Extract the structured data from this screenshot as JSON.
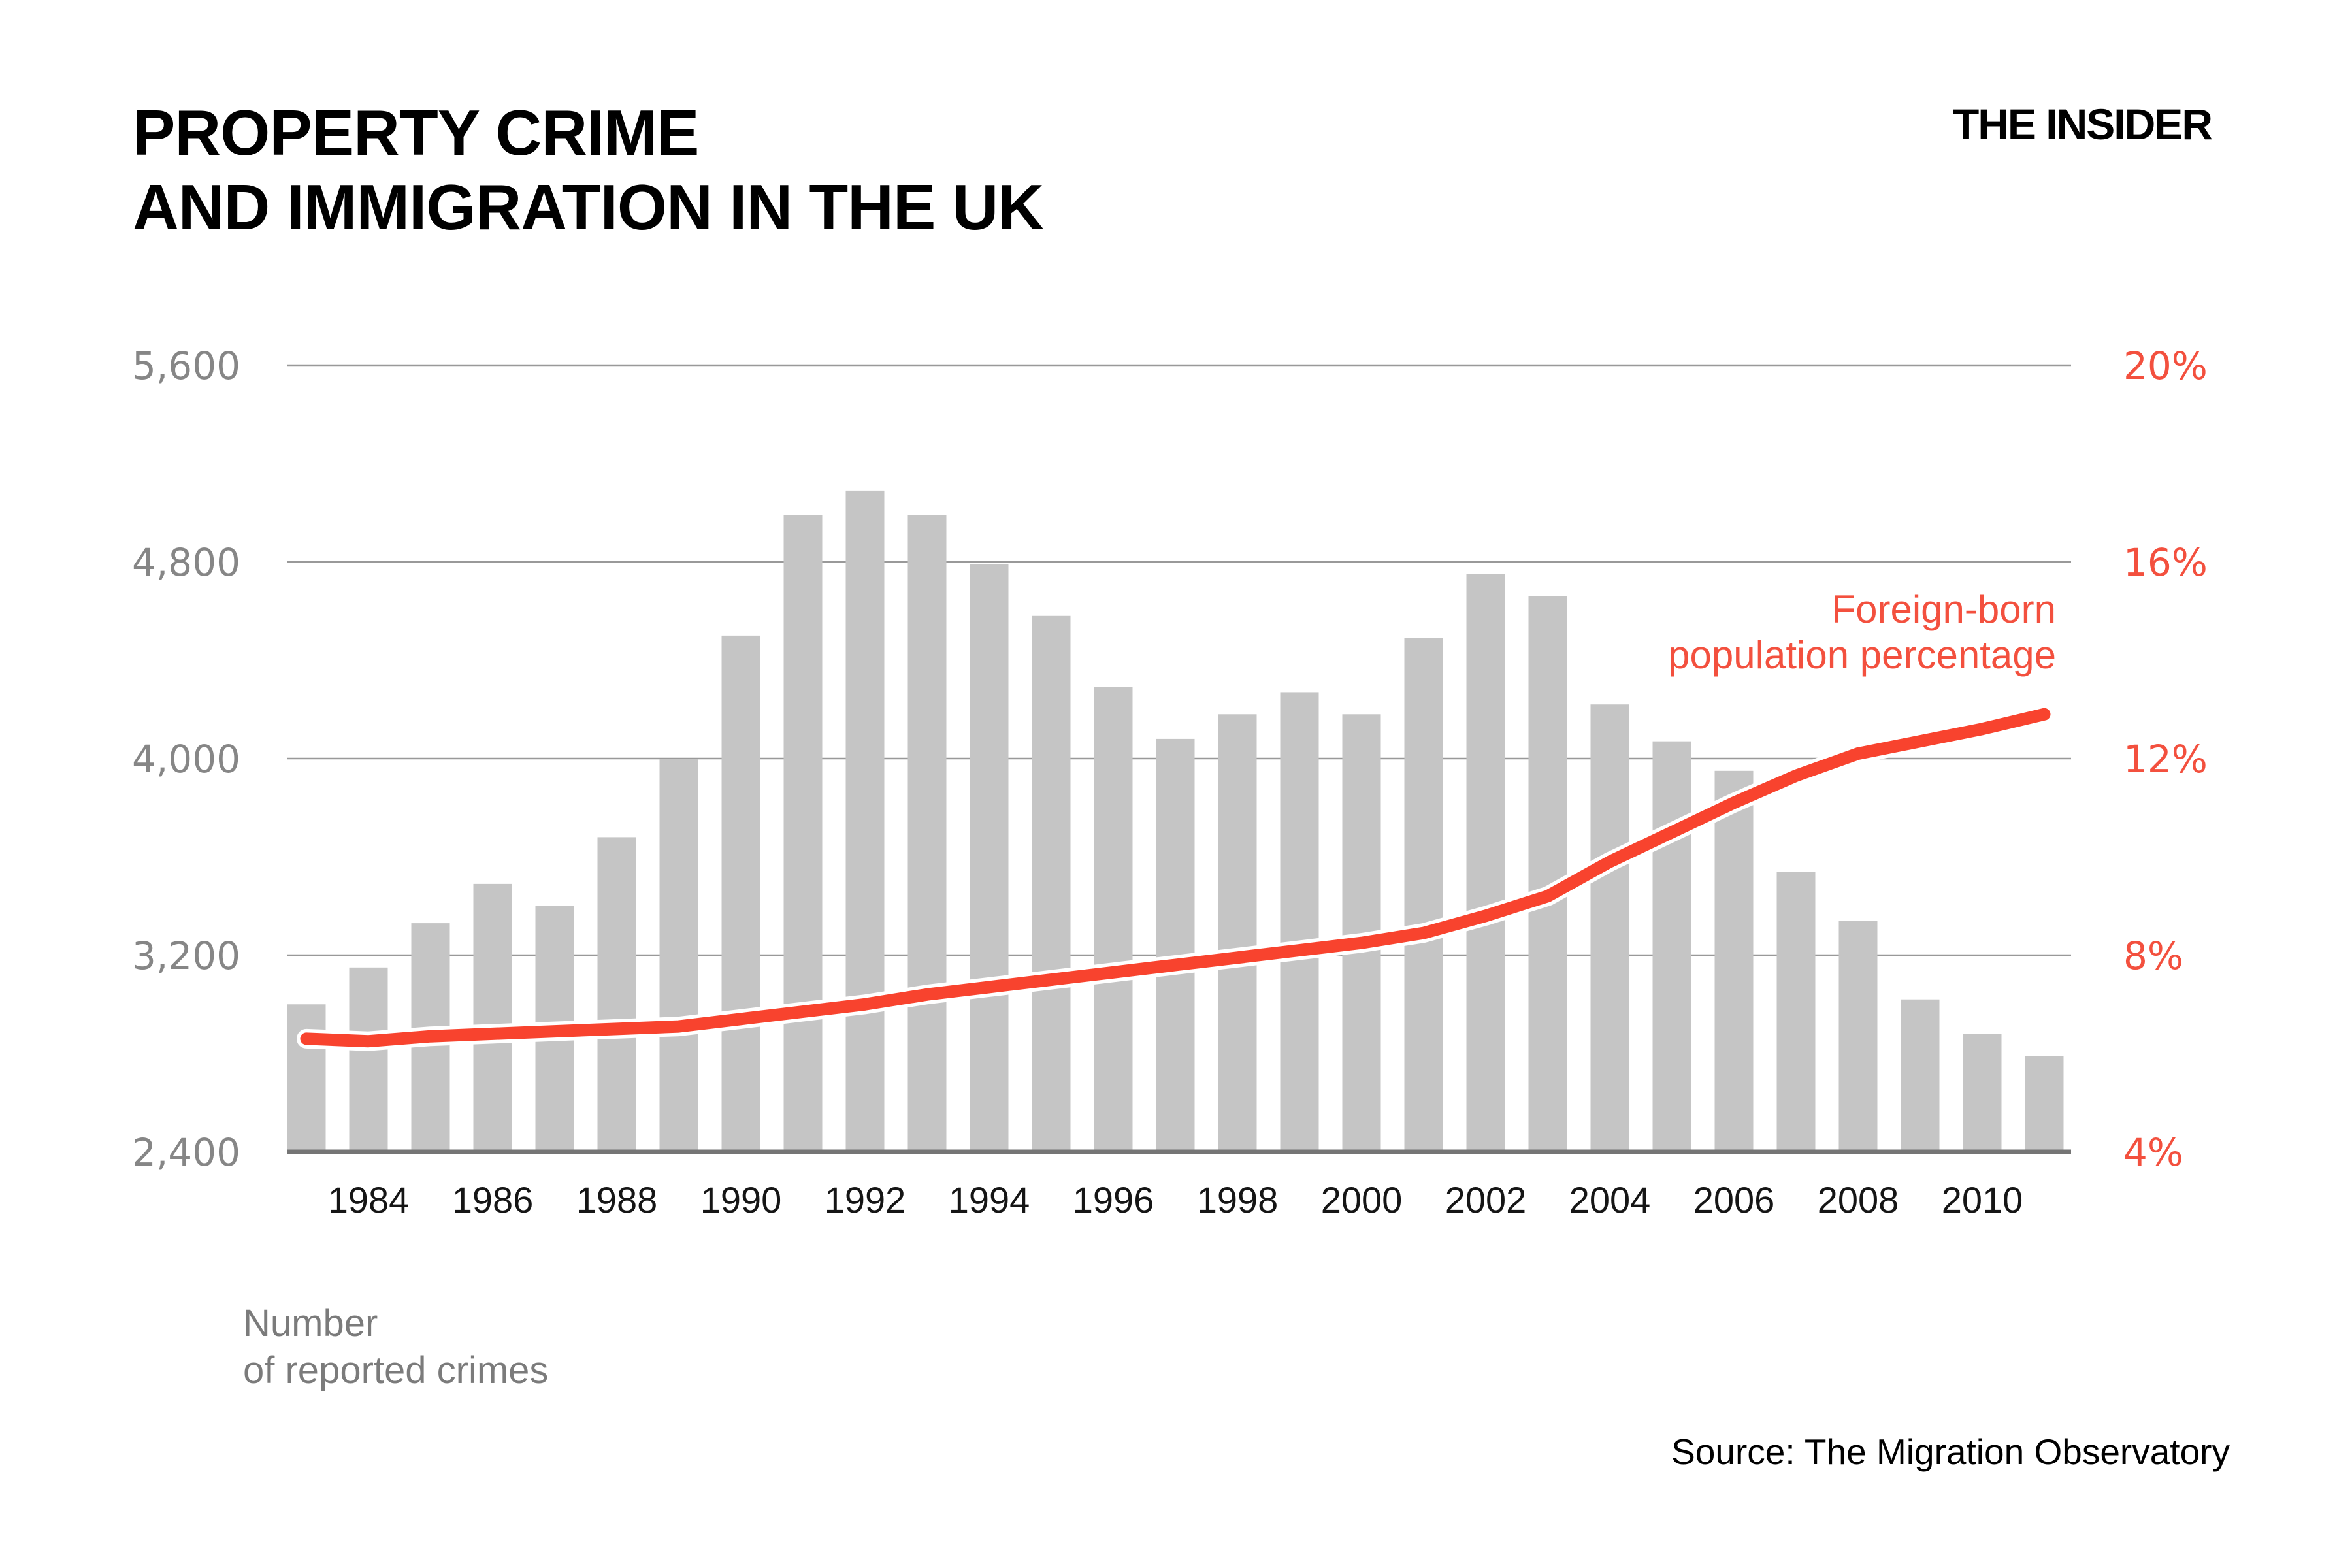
{
  "header": {
    "title_line1": "PROPERTY CRIME",
    "title_line2": "AND IMMIGRATION IN THE UK",
    "brand": "THE INSIDER"
  },
  "legend": {
    "line1": "Foreign-born",
    "line2": "population percentage"
  },
  "left_axis_caption": {
    "line1": "Number",
    "line2": "of reported crimes"
  },
  "source": "Source: The Migration Observatory",
  "colors": {
    "bar": "#C5C5C5",
    "line_red": "#F8432E",
    "label_red": "#F3503E",
    "grid": "#999999",
    "baseline": "#757575",
    "tick_gray": "#868686",
    "caption_gray": "#7B7B7B",
    "year_black": "#151515"
  },
  "chart_data": {
    "type": "bar",
    "title": "Property crime and immigration in the UK",
    "grid": true,
    "legend_position": "right-inside",
    "categories": [
      1983,
      1984,
      1985,
      1986,
      1987,
      1988,
      1989,
      1990,
      1991,
      1992,
      1993,
      1994,
      1995,
      1996,
      1997,
      1998,
      1999,
      2000,
      2001,
      2002,
      2003,
      2004,
      2005,
      2006,
      2007,
      2008,
      2009,
      2010,
      2011
    ],
    "series": [
      {
        "name": "Number of reported crimes",
        "type": "bar",
        "axis": "left",
        "values": [
          3000,
          3150,
          3330,
          3490,
          3400,
          3680,
          4000,
          4500,
          4990,
          5090,
          4990,
          4790,
          4580,
          4290,
          4080,
          4180,
          4270,
          4180,
          4490,
          4750,
          4660,
          4220,
          4070,
          3950,
          3540,
          3340,
          3020,
          2880,
          2790
        ]
      },
      {
        "name": "Foreign-born population percentage",
        "type": "line",
        "axis": "right",
        "values": [
          6.3,
          6.25,
          6.35,
          6.4,
          6.45,
          6.5,
          6.55,
          6.7,
          6.85,
          7.0,
          7.2,
          7.35,
          7.5,
          7.65,
          7.8,
          7.95,
          8.1,
          8.25,
          8.45,
          8.8,
          9.2,
          9.9,
          10.5,
          11.1,
          11.65,
          12.1,
          12.35,
          12.6,
          12.9
        ]
      }
    ],
    "left_axis": {
      "label": "Number of reported crimes",
      "ticks": [
        2400,
        3200,
        4000,
        4800,
        5600
      ],
      "tick_labels": [
        "2,400",
        "3,200",
        "4,000",
        "4,800",
        "5,600"
      ],
      "range": [
        2400,
        5600
      ]
    },
    "right_axis": {
      "label": "Foreign-born population percentage",
      "ticks": [
        4,
        8,
        12,
        16,
        20
      ],
      "tick_labels": [
        "4%",
        "8%",
        "12%",
        "16%",
        "20%"
      ],
      "range": [
        4,
        20
      ]
    },
    "x_axis": {
      "tick_years": [
        1984,
        1986,
        1988,
        1990,
        1992,
        1994,
        1996,
        1998,
        2000,
        2002,
        2004,
        2006,
        2008,
        2010
      ]
    }
  }
}
